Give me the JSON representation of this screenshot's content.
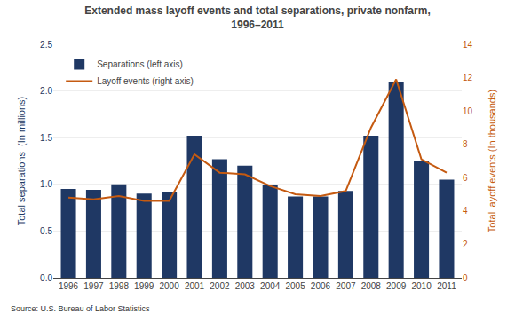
{
  "chart_data": {
    "type": "bar",
    "title": "Extended mass layoff events and total separations, private nonfarm,",
    "subtitle": "1996–2011",
    "x": [
      1996,
      1997,
      1998,
      1999,
      2000,
      2001,
      2002,
      2003,
      2004,
      2005,
      2006,
      2007,
      2008,
      2009,
      2010,
      2011
    ],
    "xlim": [
      1995.4,
      2011.6
    ],
    "xticks": [
      1996,
      1997,
      1998,
      1999,
      2000,
      2001,
      2002,
      2003,
      2004,
      2005,
      2006,
      2007,
      2008,
      2009,
      2010,
      2011
    ],
    "series": [
      {
        "name": "Separations (left axis)",
        "type": "bar",
        "color": "#1F3864",
        "values": [
          0.95,
          0.94,
          1.0,
          0.9,
          0.92,
          1.52,
          1.27,
          1.2,
          0.99,
          0.87,
          0.87,
          0.93,
          1.52,
          2.1,
          1.25,
          1.05
        ]
      },
      {
        "name": "Layoff events (right axis)",
        "type": "line",
        "color": "#C55A11",
        "axis": "y2",
        "values": [
          4.8,
          4.7,
          4.9,
          4.6,
          4.6,
          7.4,
          6.3,
          6.2,
          5.5,
          5.0,
          4.9,
          5.2,
          9.0,
          11.9,
          7.1,
          6.3
        ]
      }
    ],
    "ylabel": "Total separations  (In millions)",
    "y2label": "Total layoff events (In thousands)",
    "ylim": [
      0,
      2.5
    ],
    "yticks": [
      {
        "value": 0.0,
        "label": "0.0"
      },
      0.5,
      {
        "value": 1.0,
        "label": "1.0"
      },
      1.5,
      {
        "value": 2.0,
        "label": "2.0"
      },
      2.5
    ],
    "y2lim": [
      0,
      14
    ],
    "y2ticks": [
      0,
      2,
      4,
      6,
      8,
      10,
      12,
      14
    ],
    "grid": true,
    "legend": "upper left",
    "annotations": [
      "Source: U.S. Bureau of Labor Statistics"
    ]
  }
}
